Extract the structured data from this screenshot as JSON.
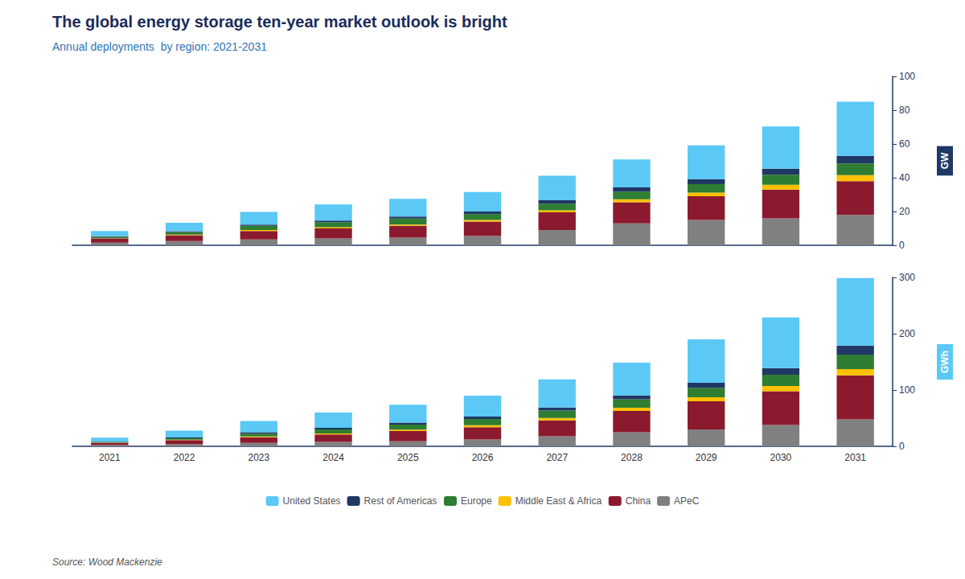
{
  "chart_data": [
    {
      "type": "bar",
      "title": "The global energy storage ten-year market outlook is bright",
      "subtitle": "Annual deployments  by region: 2021-2031",
      "ylabel": "GW",
      "categories": [
        "2021",
        "2022",
        "2023",
        "2024",
        "2025",
        "2026",
        "2027",
        "2028",
        "2029",
        "2030",
        "2031"
      ],
      "series": [
        {
          "name": "APeC",
          "color": "#808080",
          "values": [
            1.5,
            2.5,
            3.5,
            4.0,
            4.5,
            5.5,
            9.0,
            13.0,
            15.0,
            16.0,
            18.0
          ]
        },
        {
          "name": "China",
          "color": "#8B1A2E",
          "values": [
            2.5,
            3.5,
            5.0,
            6.0,
            7.0,
            8.5,
            10.5,
            12.5,
            14.0,
            17.0,
            20.0
          ]
        },
        {
          "name": "Middle East & Africa",
          "color": "#FFC000",
          "values": [
            0.2,
            0.3,
            0.5,
            0.7,
            0.8,
            1.0,
            1.2,
            1.8,
            2.2,
            2.8,
            3.5
          ]
        },
        {
          "name": "Europe",
          "color": "#2E7D32",
          "values": [
            0.8,
            1.5,
            2.5,
            3.0,
            3.5,
            3.5,
            4.0,
            4.5,
            5.0,
            6.0,
            7.0
          ]
        },
        {
          "name": "Rest of Americas",
          "color": "#1F3864",
          "values": [
            0.3,
            0.5,
            0.8,
            1.0,
            1.2,
            1.5,
            2.0,
            2.5,
            3.0,
            3.5,
            4.5
          ]
        },
        {
          "name": "United States",
          "color": "#5BC8F5",
          "values": [
            3.2,
            5.0,
            7.5,
            9.5,
            10.5,
            11.5,
            14.5,
            16.5,
            20.0,
            25.0,
            32.0
          ]
        }
      ],
      "ylim": [
        0,
        100
      ],
      "yticks": [
        0,
        20,
        40,
        60,
        80,
        100
      ],
      "stacked": true,
      "grid": false,
      "tick_labels": "y"
    },
    {
      "type": "bar",
      "ylabel": "GWh",
      "categories": [
        "2021",
        "2022",
        "2023",
        "2024",
        "2025",
        "2026",
        "2027",
        "2028",
        "2029",
        "2030",
        "2031"
      ],
      "series": [
        {
          "name": "APeC",
          "color": "#808080",
          "values": [
            2.0,
            4.0,
            6.0,
            8.0,
            9.0,
            12.0,
            18.0,
            25.0,
            30.0,
            38.0,
            48.0
          ]
        },
        {
          "name": "China",
          "color": "#8B1A2E",
          "values": [
            4.0,
            7.0,
            10.0,
            13.0,
            18.0,
            22.0,
            28.0,
            38.0,
            50.0,
            60.0,
            78.0
          ]
        },
        {
          "name": "Middle East & Africa",
          "color": "#FFC000",
          "values": [
            0.5,
            0.8,
            1.5,
            2.0,
            2.5,
            3.5,
            4.5,
            5.5,
            7.0,
            9.0,
            11.0
          ]
        },
        {
          "name": "Europe",
          "color": "#2E7D32",
          "values": [
            1.0,
            2.5,
            5.0,
            7.0,
            9.0,
            11.0,
            13.0,
            15.0,
            17.0,
            20.0,
            26.0
          ]
        },
        {
          "name": "Rest of Americas",
          "color": "#1F3864",
          "values": [
            0.8,
            1.5,
            2.5,
            3.0,
            3.5,
            4.5,
            5.5,
            7.0,
            9.0,
            12.0,
            16.0
          ]
        },
        {
          "name": "United States",
          "color": "#5BC8F5",
          "values": [
            7.0,
            12.0,
            20.0,
            27.0,
            32.0,
            37.0,
            50.0,
            58.0,
            77.0,
            90.0,
            120.0
          ]
        }
      ],
      "ylim": [
        0,
        300
      ],
      "yticks": [
        0,
        100,
        200,
        300
      ],
      "stacked": true,
      "grid": false,
      "legend": "bottom",
      "source": "Source: Wood Mackenzie"
    }
  ]
}
